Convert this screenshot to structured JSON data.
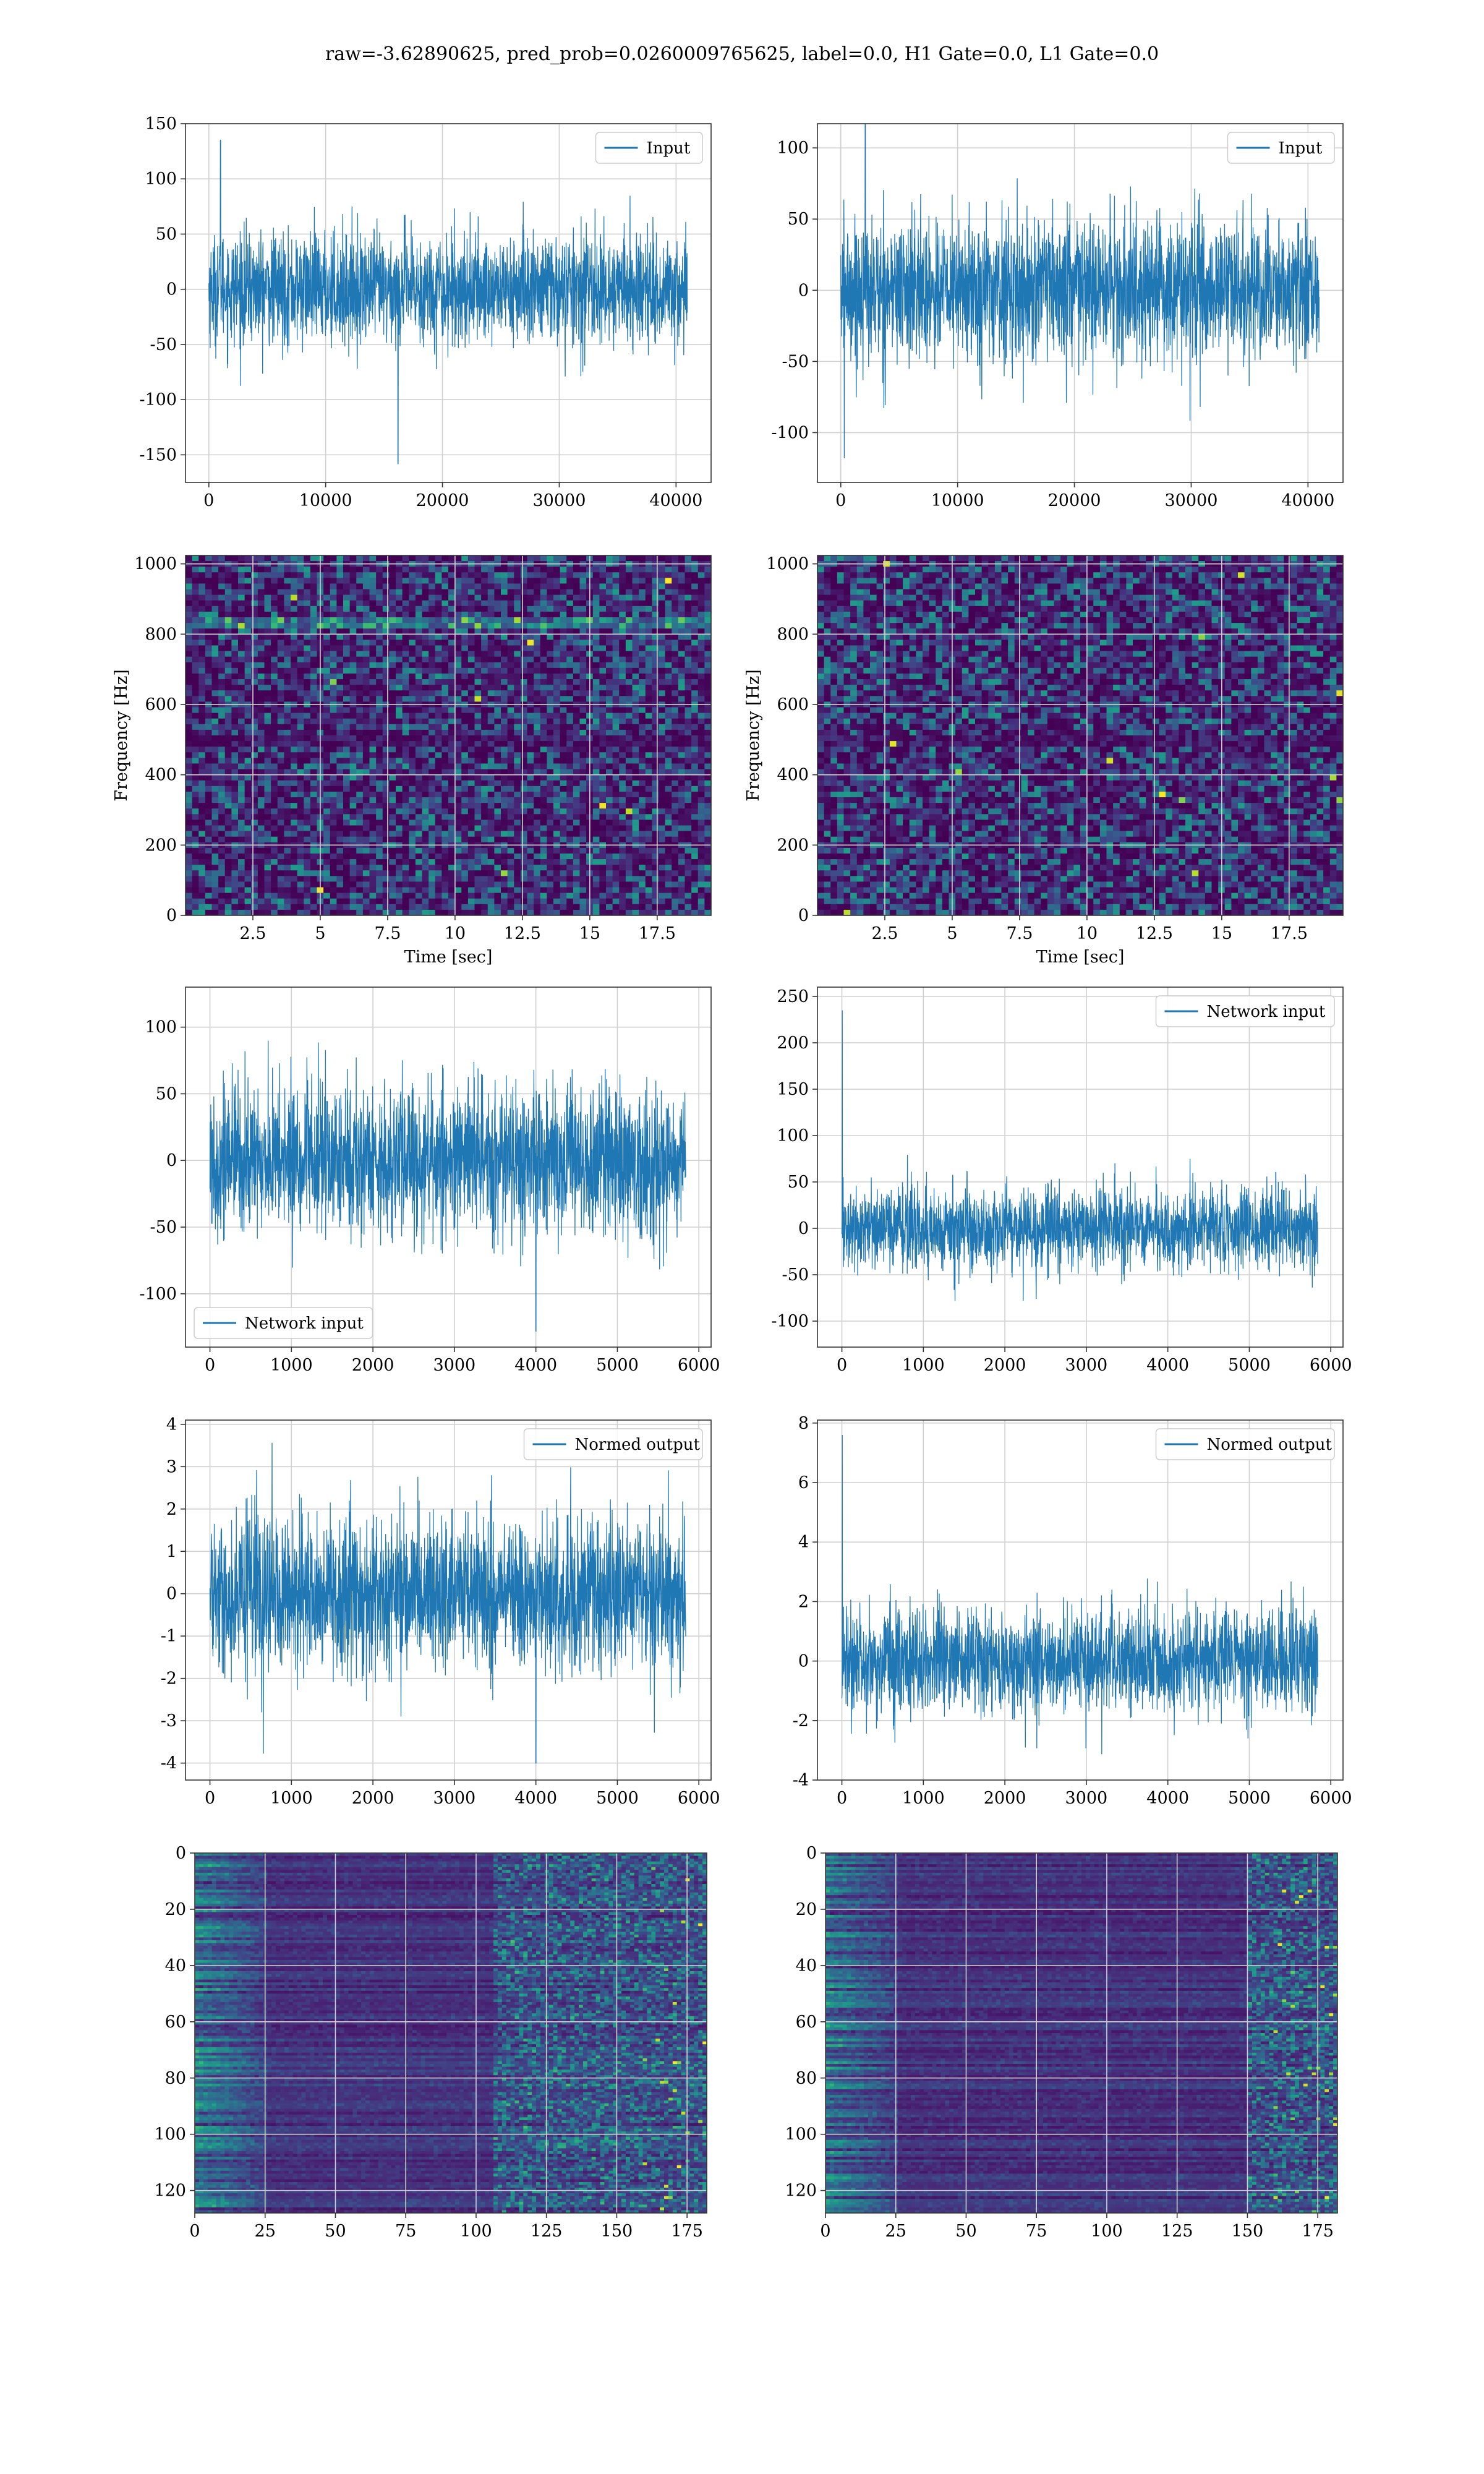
{
  "suptitle": "raw=-3.62890625, pred_prob=0.0260009765625, label=0.0, H1 Gate=0.0, L1 Gate=0.0",
  "colors": {
    "line": "#1f77b4",
    "grid": "#d0d0d0",
    "viridis": [
      "#440154",
      "#482878",
      "#3e4989",
      "#31688e",
      "#26828e",
      "#1f9e89",
      "#35b779",
      "#6ece58",
      "#b5de2b",
      "#fde725"
    ]
  },
  "chart_data": [
    {
      "id": "input-h1",
      "type": "line",
      "series": [
        {
          "name": "Input",
          "n": 40960,
          "mean": 0,
          "std": 25,
          "spikes": [
            [
              1000,
              135
            ],
            [
              16200,
              -158
            ]
          ]
        }
      ],
      "xlim": [
        -2000,
        43000
      ],
      "ylim": [
        -175,
        150
      ],
      "xticks": [
        0,
        10000,
        20000,
        30000,
        40000
      ],
      "yticks": [
        -150,
        -100,
        -50,
        0,
        50,
        100,
        150
      ],
      "legend": "upper right",
      "grid": true
    },
    {
      "id": "input-l1",
      "type": "line",
      "series": [
        {
          "name": "Input",
          "n": 40960,
          "mean": 0,
          "std": 25,
          "spikes": [
            [
              2100,
              130
            ],
            [
              300,
              -118
            ]
          ]
        }
      ],
      "xlim": [
        -2000,
        43000
      ],
      "ylim": [
        -135,
        117
      ],
      "xticks": [
        0,
        10000,
        20000,
        30000,
        40000
      ],
      "yticks": [
        -100,
        -50,
        0,
        50,
        100
      ],
      "legend": "upper right",
      "grid": true
    },
    {
      "id": "spectrogram-h1",
      "type": "heatmap",
      "xlabel": "Time [sec]",
      "ylabel": "Frequency [Hz]",
      "xlim": [
        0,
        19.5
      ],
      "ylim": [
        0,
        1024
      ],
      "xticks": [
        2.5,
        5.0,
        7.5,
        10.0,
        12.5,
        15.0,
        17.5
      ],
      "yticks": [
        0,
        200,
        400,
        600,
        800,
        1000
      ],
      "grid": true,
      "rows": 64,
      "cols": 80,
      "bright_bands_hz": [
        830
      ],
      "dark_bands_hz": [
        500
      ]
    },
    {
      "id": "spectrogram-l1",
      "type": "heatmap",
      "xlabel": "Time [sec]",
      "ylabel": "Frequency [Hz]",
      "xlim": [
        0,
        19.5
      ],
      "ylim": [
        0,
        1024
      ],
      "xticks": [
        2.5,
        5.0,
        7.5,
        10.0,
        12.5,
        15.0,
        17.5
      ],
      "yticks": [
        0,
        200,
        400,
        600,
        800,
        1000
      ],
      "grid": true,
      "rows": 64,
      "cols": 80,
      "bright_bands_hz": [],
      "dark_bands_hz": [
        500
      ]
    },
    {
      "id": "network-input-h1",
      "type": "line",
      "series": [
        {
          "name": "Network input",
          "n": 5840,
          "mean": 0,
          "std": 28,
          "spikes": [
            [
              4000,
              -128
            ]
          ]
        }
      ],
      "xlim": [
        -300,
        6150
      ],
      "ylim": [
        -140,
        130
      ],
      "xticks": [
        0,
        1000,
        2000,
        3000,
        4000,
        5000,
        6000
      ],
      "yticks": [
        -100,
        -50,
        0,
        50,
        100
      ],
      "legend": "lower left",
      "grid": true
    },
    {
      "id": "network-input-l1",
      "type": "line",
      "series": [
        {
          "name": "Network input",
          "n": 5840,
          "mean": 0,
          "std": 22,
          "spikes": [
            [
              5,
              235
            ]
          ]
        }
      ],
      "xlim": [
        -300,
        6150
      ],
      "ylim": [
        -128,
        260
      ],
      "xticks": [
        0,
        1000,
        2000,
        3000,
        4000,
        5000,
        6000
      ],
      "yticks": [
        -100,
        -50,
        0,
        50,
        100,
        150,
        200,
        250
      ],
      "legend": "upper right",
      "grid": true
    },
    {
      "id": "normed-output-h1",
      "type": "line",
      "series": [
        {
          "name": "Normed output",
          "n": 5840,
          "mean": 0,
          "std": 0.9,
          "spikes": [
            [
              4000,
              -4
            ]
          ]
        }
      ],
      "xlim": [
        -300,
        6150
      ],
      "ylim": [
        -4.4,
        4.1
      ],
      "xticks": [
        0,
        1000,
        2000,
        3000,
        4000,
        5000,
        6000
      ],
      "yticks": [
        -4,
        -3,
        -2,
        -1,
        0,
        1,
        2,
        3,
        4
      ],
      "legend": "upper right",
      "grid": true
    },
    {
      "id": "normed-output-l1",
      "type": "line",
      "series": [
        {
          "name": "Normed output",
          "n": 5840,
          "mean": 0,
          "std": 0.9,
          "spikes": [
            [
              5,
              7.6
            ]
          ]
        }
      ],
      "xlim": [
        -300,
        6150
      ],
      "ylim": [
        -4,
        8.1
      ],
      "xticks": [
        0,
        1000,
        2000,
        3000,
        4000,
        5000,
        6000
      ],
      "yticks": [
        -4,
        -2,
        0,
        2,
        4,
        6,
        8
      ],
      "legend": "upper right",
      "grid": true
    },
    {
      "id": "feature-map-h1",
      "type": "heatmap",
      "xlim": [
        0,
        182
      ],
      "ylim": [
        128,
        0
      ],
      "xticks": [
        0,
        25,
        50,
        75,
        100,
        125,
        150,
        175
      ],
      "yticks": [
        0,
        20,
        40,
        60,
        80,
        100,
        120
      ],
      "grid": true,
      "rows": 128,
      "cols": 182,
      "active_cols_from": 105
    },
    {
      "id": "feature-map-l1",
      "type": "heatmap",
      "xlim": [
        0,
        182
      ],
      "ylim": [
        128,
        0
      ],
      "xticks": [
        0,
        25,
        50,
        75,
        100,
        125,
        150,
        175
      ],
      "yticks": [
        0,
        20,
        40,
        60,
        80,
        100,
        120
      ],
      "grid": true,
      "rows": 128,
      "cols": 182,
      "active_cols_from": 150
    }
  ]
}
